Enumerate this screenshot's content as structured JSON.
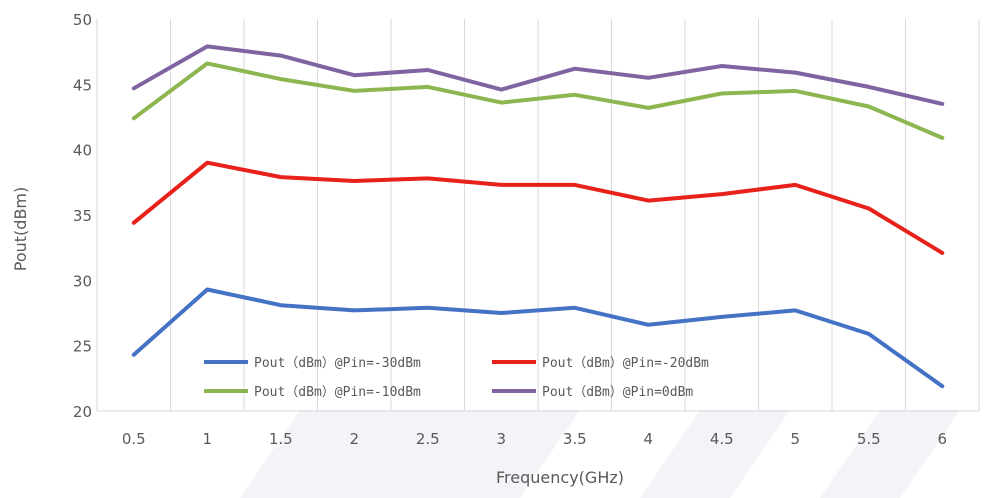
{
  "chart_data": {
    "type": "line",
    "title": "",
    "xlabel": "Frequency(GHz)",
    "ylabel": "Pout(dBm)",
    "x": [
      "0.5",
      "1",
      "1.5",
      "2",
      "2.5",
      "3",
      "3.5",
      "4",
      "4.5",
      "5",
      "5.5",
      "6"
    ],
    "ylim": [
      20,
      50
    ],
    "yticks": [
      "20",
      "25",
      "30",
      "35",
      "40",
      "45",
      "50"
    ],
    "grid": "vertical",
    "legend_position": "bottom-left",
    "series": [
      {
        "name": "Pout（dBm）@Pin=-30dBm",
        "color": "#4472C4",
        "values": [
          24.3,
          29.3,
          28.1,
          27.7,
          27.9,
          27.5,
          27.9,
          26.6,
          27.2,
          27.7,
          25.9,
          21.9
        ]
      },
      {
        "name": "Pout（dBm）@Pin=-20dBm",
        "color": "#E8211A",
        "values": [
          34.4,
          39.0,
          37.9,
          37.6,
          37.8,
          37.3,
          37.3,
          36.1,
          36.6,
          37.3,
          35.5,
          32.1
        ]
      },
      {
        "name": "Pout（dBm）@Pin=-10dBm",
        "color": "#8DB651",
        "values": [
          42.4,
          46.6,
          45.4,
          44.5,
          44.8,
          43.6,
          44.2,
          43.2,
          44.3,
          44.5,
          43.3,
          40.9
        ]
      },
      {
        "name": "Pout（dBm）@Pin=0dBm",
        "color": "#8064A2",
        "values": [
          44.7,
          47.9,
          47.2,
          45.7,
          46.1,
          44.6,
          46.2,
          45.5,
          46.4,
          45.9,
          44.8,
          43.5
        ]
      }
    ]
  }
}
